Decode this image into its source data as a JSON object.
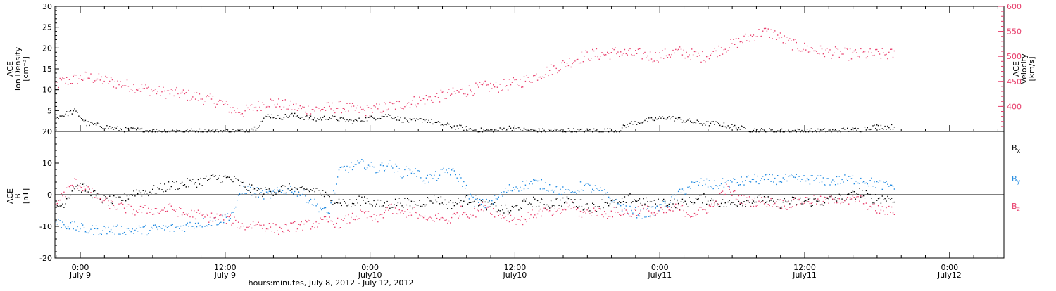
{
  "chart_data": [
    {
      "type": "scatter",
      "panel": "plasma",
      "ylabel_left": [
        "ACE",
        "Ion Density",
        "[cm⁻³]"
      ],
      "ylabel_right": [
        "ACE",
        "Velocity",
        "[km/s]"
      ],
      "ylim_left": [
        0,
        30
      ],
      "yticks_left": [
        0,
        5,
        10,
        15,
        20,
        25,
        30
      ],
      "ylim_right": [
        350,
        600
      ],
      "yticks_right": [
        400,
        450,
        500,
        550,
        600
      ],
      "grid": false,
      "series": [
        {
          "axis": "left",
          "color": "#000000",
          "x": [
            -2.5,
            -1.5,
            -0.5,
            0.5,
            1.5,
            2.5,
            3.5,
            4.5,
            5.5,
            6.5,
            7.5,
            8.5,
            9.5,
            10.5,
            11.5,
            12.5,
            13.5,
            14.5,
            15.5,
            16.5,
            17.5,
            18.5,
            19.5,
            20.5,
            21.5,
            22.5,
            23.5,
            24.5,
            25.5,
            26.5,
            27.5,
            28.5,
            29.5,
            30.5,
            31.5,
            32.5,
            33.5,
            34.5,
            35.5,
            36.5,
            37.5,
            38.5,
            39.5,
            40.5,
            41.5,
            42.5,
            43.5,
            44.5,
            45.5,
            46.5,
            47.5,
            48.5,
            49.5,
            50.5,
            51.5,
            52.5,
            53.5,
            54.5,
            55.5,
            56.5,
            57.5,
            58.5,
            59.5,
            60.5,
            61.5,
            62.5,
            63.5,
            64.5,
            65.5,
            66.5
          ],
          "y": [
            3,
            4,
            5,
            2,
            1.5,
            1,
            0.5,
            0.5,
            0.3,
            0.2,
            0.2,
            0.2,
            0.2,
            0.2,
            0.2,
            0.2,
            0.2,
            1,
            4,
            3.5,
            4,
            3.5,
            3,
            3.5,
            3,
            2.5,
            3,
            3.5,
            4,
            3,
            2.5,
            3,
            2,
            1.5,
            1,
            0.5,
            0.3,
            0.3,
            1,
            0.5,
            0.3,
            0.3,
            0.3,
            0.3,
            0.2,
            0.3,
            0.3,
            0.3,
            2,
            2.5,
            3,
            3.5,
            3,
            2.5,
            2,
            2,
            1.5,
            1,
            0.5,
            0.3,
            0.2,
            0.2,
            0.2,
            0.2,
            0.2,
            0.2,
            0.5,
            0.5,
            1.2,
            1.2
          ]
        },
        {
          "axis": "right",
          "color": "#e83e6c",
          "x": [
            -2.5,
            -1.5,
            -0.5,
            0.5,
            1.5,
            2.5,
            3.5,
            4.5,
            5.5,
            6.5,
            7.5,
            8.5,
            9.5,
            10.5,
            11.5,
            12.5,
            13.5,
            14.5,
            15.5,
            16.5,
            17.5,
            18.5,
            19.5,
            20.5,
            21.5,
            22.5,
            23.5,
            24.5,
            25.5,
            26.5,
            27.5,
            28.5,
            29.5,
            30.5,
            31.5,
            32.5,
            33.5,
            34.5,
            35.5,
            36.5,
            37.5,
            38.5,
            39.5,
            40.5,
            41.5,
            42.5,
            43.5,
            44.5,
            45.5,
            46.5,
            47.5,
            48.5,
            49.5,
            50.5,
            51.5,
            52.5,
            53.5,
            54.5,
            55.5,
            56.5,
            57.5,
            58.5,
            59.5,
            60.5,
            61.5,
            62.5,
            63.5,
            64.5,
            65.5,
            66.5
          ],
          "y": [
            440,
            450,
            455,
            460,
            455,
            450,
            445,
            440,
            435,
            430,
            428,
            425,
            420,
            415,
            410,
            395,
            390,
            400,
            410,
            405,
            400,
            395,
            395,
            398,
            400,
            395,
            392,
            395,
            400,
            405,
            410,
            415,
            420,
            425,
            430,
            435,
            440,
            440,
            445,
            450,
            460,
            470,
            480,
            490,
            500,
            505,
            505,
            510,
            505,
            505,
            500,
            505,
            510,
            505,
            500,
            510,
            520,
            530,
            540,
            550,
            545,
            530,
            520,
            515,
            510,
            508,
            505,
            505,
            505,
            505
          ]
        }
      ]
    },
    {
      "type": "scatter",
      "panel": "magnetic",
      "ylabel_left": [
        "ACE",
        "B",
        "[nT]"
      ],
      "ylim": [
        -20,
        20
      ],
      "yticks": [
        -20,
        -10,
        0,
        10,
        20
      ],
      "grid": false,
      "zero_line": true,
      "xlabel": "hours:minutes, July  8, 2012 - July 12, 2012",
      "x_ticks": [
        {
          "h": 0,
          "time": "0:00",
          "date": "July 9"
        },
        {
          "h": 12,
          "time": "12:00",
          "date": "July 9"
        },
        {
          "h": 24,
          "time": "0:00",
          "date": "July10"
        },
        {
          "h": 36,
          "time": "12:00",
          "date": "July10"
        },
        {
          "h": 48,
          "time": "0:00",
          "date": "July11"
        },
        {
          "h": 60,
          "time": "12:00",
          "date": "July11"
        },
        {
          "h": 72,
          "time": "0:00",
          "date": "July12"
        }
      ],
      "xlim": [
        -2.1,
        76.5
      ],
      "series": [
        {
          "name": "B",
          "sub": "x",
          "color": "#000000",
          "x": [
            -2.5,
            -1.5,
            -0.5,
            0.5,
            1.5,
            2.5,
            3.5,
            4.5,
            5.5,
            6.5,
            7.5,
            8.5,
            9.5,
            10.5,
            11.5,
            12.5,
            13.5,
            14.5,
            15.5,
            16.5,
            17.5,
            18.5,
            19.5,
            20.5,
            21.5,
            22.5,
            23.5,
            24.5,
            25.5,
            26.5,
            27.5,
            28.5,
            29.5,
            30.5,
            31.5,
            32.5,
            33.5,
            34.5,
            35.5,
            36.5,
            37.5,
            38.5,
            39.5,
            40.5,
            41.5,
            42.5,
            43.5,
            44.5,
            45.5,
            46.5,
            47.5,
            48.5,
            49.5,
            50.5,
            51.5,
            52.5,
            53.5,
            54.5,
            55.5,
            56.5,
            57.5,
            58.5,
            59.5,
            60.5,
            61.5,
            62.5,
            63.5,
            64.5,
            65.5,
            66.5
          ],
          "y": [
            -4,
            -3,
            3,
            2,
            -1,
            -2,
            -1,
            1,
            1,
            2,
            3,
            3.5,
            4,
            5,
            5.5,
            5,
            3,
            1,
            1,
            2,
            2,
            1,
            2,
            -1,
            -2,
            -3,
            -1,
            -3,
            -3,
            -2,
            -3,
            -2,
            -1,
            -3,
            -2,
            -1,
            -3,
            -4,
            -5,
            -3,
            -2,
            -3,
            -2,
            -2,
            -3,
            -4,
            -2,
            -3,
            -1,
            -2,
            -3,
            -2,
            -3,
            -2,
            -1,
            -2,
            -3,
            -2,
            -2,
            -1,
            -3,
            -2,
            -2,
            -2,
            -2,
            -1,
            -1,
            1,
            -1,
            -1
          ]
        },
        {
          "name": "B",
          "sub": "y",
          "color": "#1a87e0",
          "x": [
            -2.5,
            -1.5,
            -0.5,
            0.5,
            1.5,
            2.5,
            3.5,
            4.5,
            5.5,
            6.5,
            7.5,
            8.5,
            9.5,
            10.5,
            11.5,
            12.5,
            13.5,
            14.5,
            15.5,
            16.5,
            17.5,
            18.5,
            19.5,
            20.5,
            21.5,
            22.5,
            23.5,
            24.5,
            25.5,
            26.5,
            27.5,
            28.5,
            29.5,
            30.5,
            31.5,
            32.5,
            33.5,
            34.5,
            35.5,
            36.5,
            37.5,
            38.5,
            39.5,
            40.5,
            41.5,
            42.5,
            43.5,
            44.5,
            45.5,
            46.5,
            47.5,
            48.5,
            49.5,
            50.5,
            51.5,
            52.5,
            53.5,
            54.5,
            55.5,
            56.5,
            57.5,
            58.5,
            59.5,
            60.5,
            61.5,
            62.5,
            63.5,
            64.5,
            65.5,
            66.5
          ],
          "y": [
            -8,
            -9,
            -10,
            -11,
            -11,
            -11,
            -11,
            -11,
            -11,
            -10.5,
            -10.5,
            -10,
            -9,
            -8.5,
            -8,
            -6,
            2,
            1,
            0,
            1,
            2,
            0,
            -3,
            -6,
            8,
            9,
            10,
            8,
            10,
            7,
            8,
            5,
            6,
            8,
            5,
            -2,
            -3,
            -1,
            2,
            3,
            4,
            3,
            2,
            0,
            3,
            2,
            0,
            -3,
            -5,
            -6,
            -5,
            -3,
            0,
            3,
            4,
            3,
            4,
            4,
            5,
            5,
            5,
            5,
            5,
            5,
            4.5,
            4.5,
            5,
            5,
            4,
            3
          ]
        },
        {
          "name": "B",
          "sub": "z",
          "color": "#e83e6c",
          "x": [
            -2.5,
            -1.5,
            -0.5,
            0.5,
            1.5,
            2.5,
            3.5,
            4.5,
            5.5,
            6.5,
            7.5,
            8.5,
            9.5,
            10.5,
            11.5,
            12.5,
            13.5,
            14.5,
            15.5,
            16.5,
            17.5,
            18.5,
            19.5,
            20.5,
            21.5,
            22.5,
            23.5,
            24.5,
            25.5,
            26.5,
            27.5,
            28.5,
            29.5,
            30.5,
            31.5,
            32.5,
            33.5,
            34.5,
            35.5,
            36.5,
            37.5,
            38.5,
            39.5,
            40.5,
            41.5,
            42.5,
            43.5,
            44.5,
            45.5,
            46.5,
            47.5,
            48.5,
            49.5,
            50.5,
            51.5,
            52.5,
            53.5,
            54.5,
            55.5,
            56.5,
            57.5,
            58.5,
            59.5,
            60.5,
            61.5,
            62.5,
            63.5,
            64.5,
            65.5,
            66.5
          ],
          "y": [
            -5,
            0,
            4,
            2,
            -1,
            -3,
            -4,
            -5,
            -4.5,
            -5,
            -4,
            -6,
            -6,
            -7,
            -7,
            -8,
            -10,
            -9,
            -10,
            -11,
            -10,
            -9.5,
            -9,
            -8,
            -9,
            -7,
            -6,
            -8,
            -4,
            -6,
            -5,
            -8,
            -7,
            -8,
            -5,
            -6,
            -3,
            -6,
            -7,
            -8,
            -6,
            -5,
            -6,
            -3,
            -6,
            -5,
            -6,
            -5,
            -6,
            -4,
            -6,
            -5,
            -4,
            -6,
            -5,
            -3,
            2,
            -1,
            -2,
            -2,
            -2.5,
            -3,
            -2,
            -1.5,
            -2,
            -1,
            -2,
            -1,
            -4,
            -5
          ]
        }
      ]
    }
  ]
}
